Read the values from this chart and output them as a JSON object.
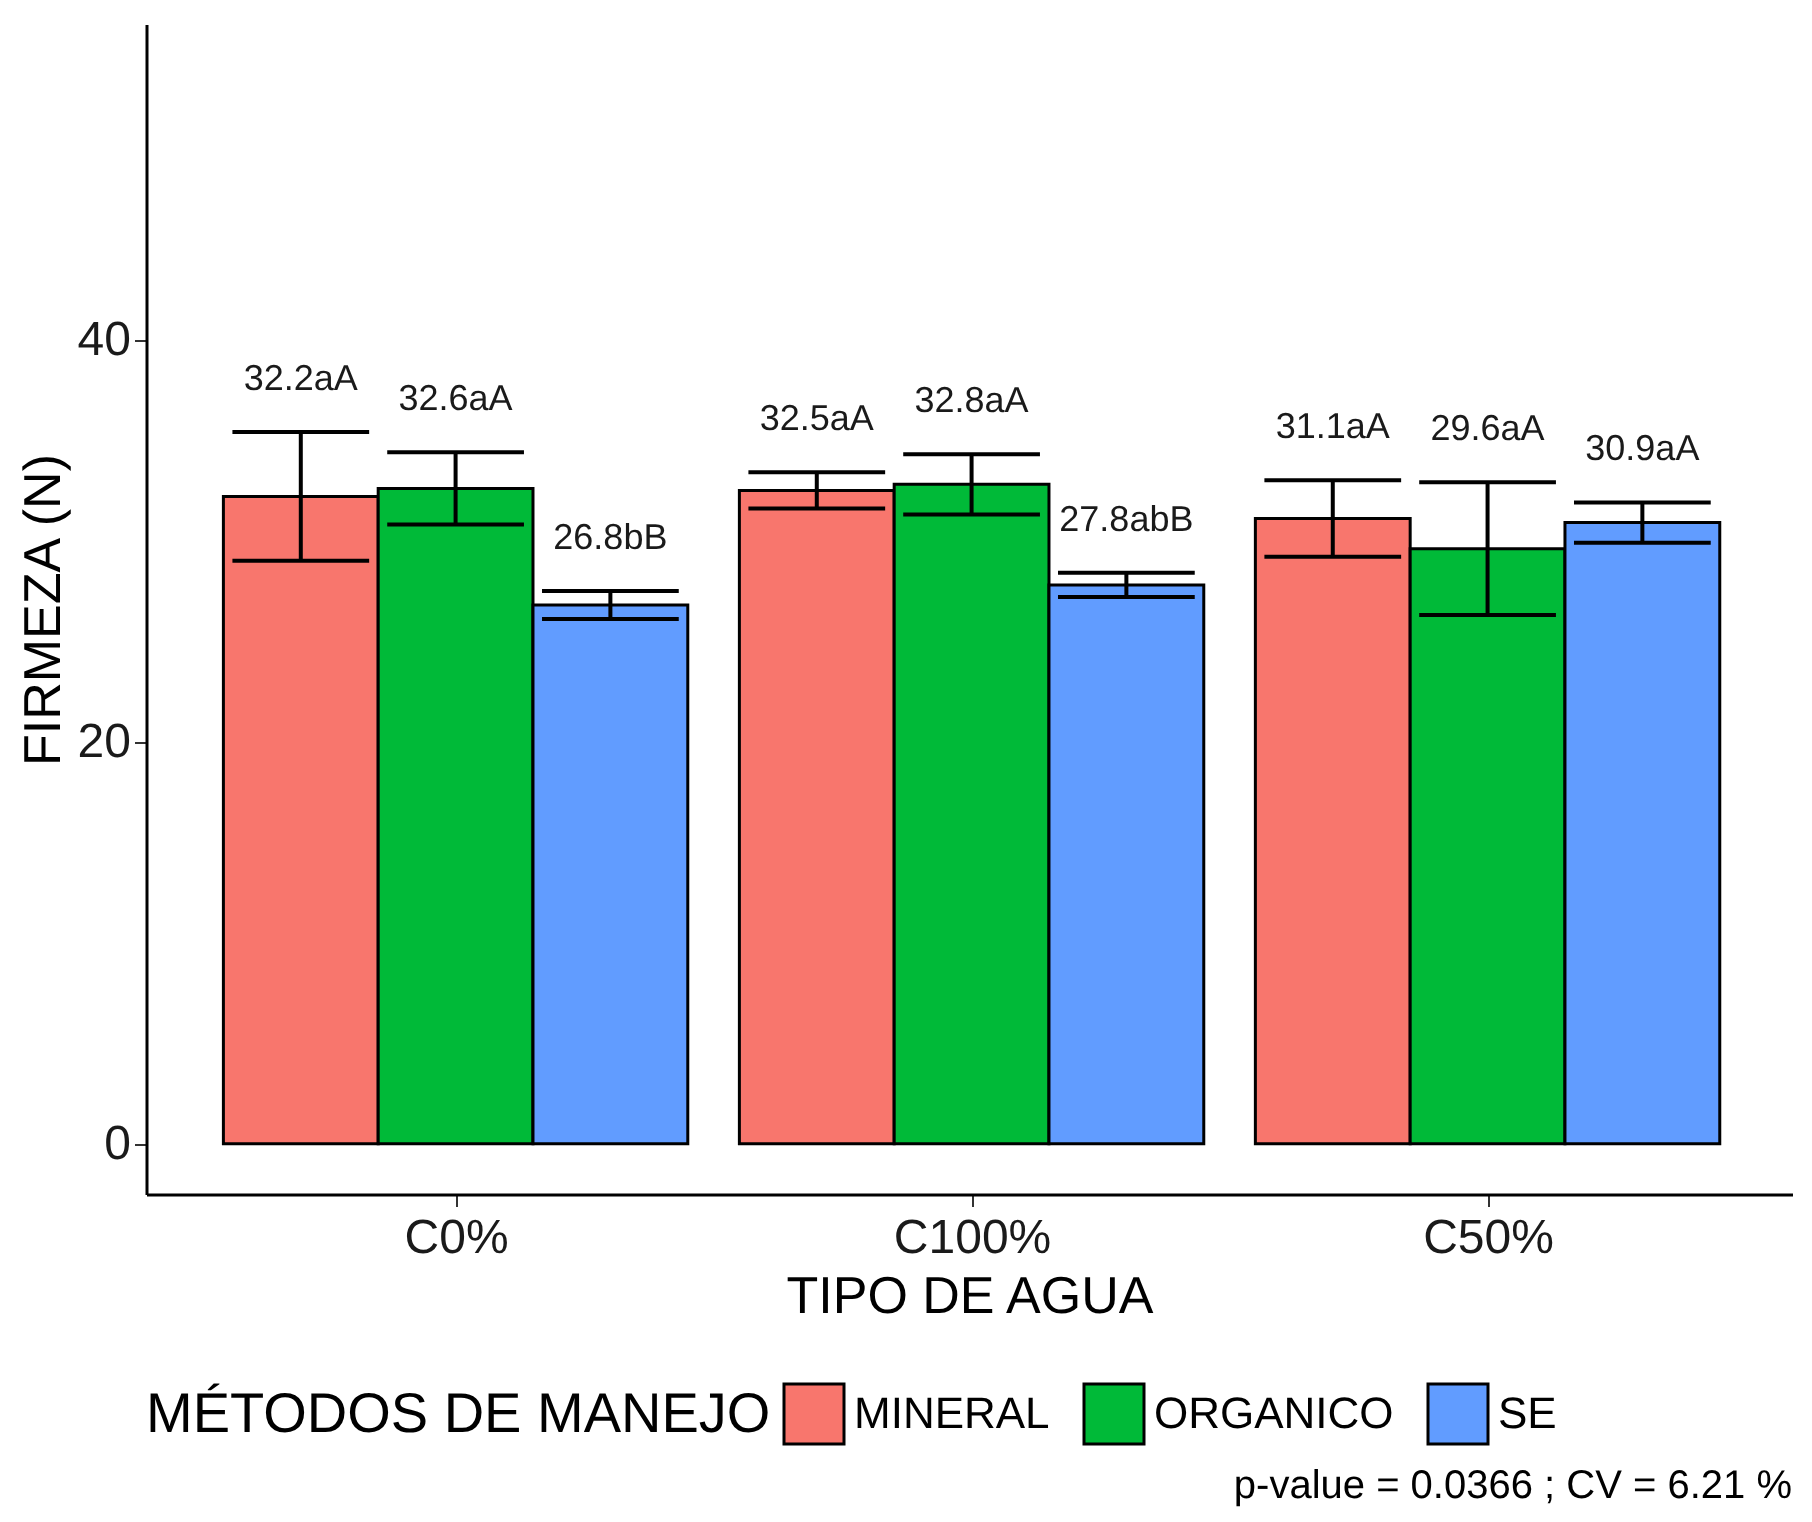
{
  "chart_data": {
    "type": "bar",
    "xlabel": "TIPO DE AGUA",
    "ylabel": "FIRMEZA (N)",
    "legend_title": "MÉTODOS DE MANEJO",
    "legend": "bottom",
    "categories": [
      "C0%",
      "C100%",
      "C50%"
    ],
    "ylim": [
      -2.5,
      55.7
    ],
    "yticks": [
      0,
      20,
      40
    ],
    "grid": false,
    "series": [
      {
        "name": "MINERAL",
        "color": "#f8766d",
        "values": [
          32.2,
          32.5,
          31.1
        ],
        "errors": [
          3.2,
          0.9,
          1.9
        ],
        "value_labels": [
          "32.2aA",
          "32.5aA",
          "31.1aA"
        ]
      },
      {
        "name": "ORGANICO",
        "color": "#00ba38",
        "values": [
          32.6,
          32.8,
          29.6
        ],
        "errors": [
          1.8,
          1.5,
          3.3
        ],
        "value_labels": [
          "32.6aA",
          "32.8aA",
          "29.6aA"
        ]
      },
      {
        "name": "SE",
        "color": "#619cff",
        "values": [
          26.8,
          27.8,
          30.9
        ],
        "errors": [
          0.7,
          0.6,
          1.0
        ],
        "value_labels": [
          "26.8bB",
          "27.8abB",
          "30.9aA"
        ]
      }
    ],
    "annotations": [
      "p-value  = 0.0366 ; CV =  6.21 %"
    ]
  }
}
